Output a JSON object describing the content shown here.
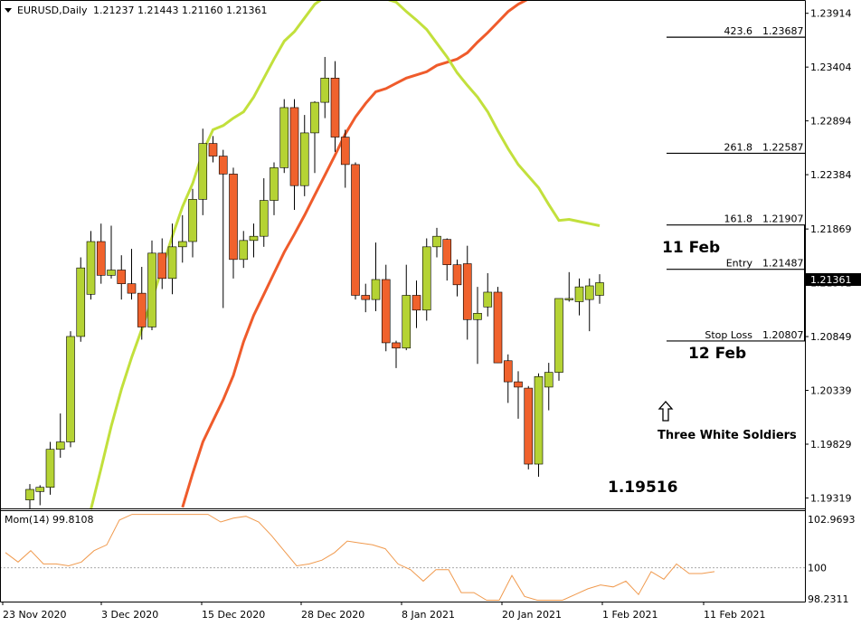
{
  "header": {
    "symbol": "EURUSD,Daily",
    "ohlc": "1.21237 1.21443 1.21160 1.21361"
  },
  "colors": {
    "bull": "#b5d334",
    "bear": "#f0622d",
    "ma_fast": "#c2e03c",
    "ma_slow": "#ef5b2b",
    "momentum": "#f09a4e",
    "price_tag_bg": "#000000"
  },
  "current_price": "1.21361",
  "chart_data": [
    {
      "type": "candlestick",
      "title": "EURUSD,Daily",
      "x_tick_labels": [
        "23 Nov 2020",
        "3 Dec 2020",
        "15 Dec 2020",
        "28 Dec 2020",
        "8 Jan 2021",
        "20 Jan 2021",
        "1 Feb 2021",
        "11 Feb 2021"
      ],
      "y_tick_labels": [
        "1.23914",
        "1.23404",
        "1.22894",
        "1.22384",
        "1.21869",
        "1.21361",
        "1.20849",
        "1.20339",
        "1.19829",
        "1.19319"
      ],
      "ylim": [
        1.1922,
        1.2404
      ],
      "candles": [
        [
          1.193,
          1.1945,
          1.1922,
          1.194
        ],
        [
          1.1938,
          1.1944,
          1.1925,
          1.1942
        ],
        [
          1.1942,
          1.1985,
          1.1935,
          1.1978
        ],
        [
          1.1978,
          1.2012,
          1.197,
          1.1985
        ],
        [
          1.1985,
          1.209,
          1.198,
          1.2085
        ],
        [
          1.2085,
          1.216,
          1.208,
          1.215
        ],
        [
          1.2125,
          1.2185,
          1.212,
          1.2175
        ],
        [
          1.2175,
          1.2192,
          1.2135,
          1.2143
        ],
        [
          1.2143,
          1.219,
          1.214,
          1.2148
        ],
        [
          1.2148,
          1.2162,
          1.212,
          1.2135
        ],
        [
          1.2135,
          1.2168,
          1.212,
          1.2126
        ],
        [
          1.2126,
          1.2151,
          1.2082,
          1.2094
        ],
        [
          1.2094,
          1.2176,
          1.2091,
          1.2164
        ],
        [
          1.2164,
          1.2178,
          1.213,
          1.214
        ],
        [
          1.214,
          1.2192,
          1.2125,
          1.217
        ],
        [
          1.217,
          1.22,
          1.2155,
          1.2175
        ],
        [
          1.2175,
          1.2225,
          1.216,
          1.2215
        ],
        [
          1.2215,
          1.2282,
          1.22,
          1.2268
        ],
        [
          1.2268,
          1.2275,
          1.225,
          1.2256
        ],
        [
          1.2256,
          1.2262,
          1.2112,
          1.2239
        ],
        [
          1.2239,
          1.2245,
          1.214,
          1.2158
        ],
        [
          1.2158,
          1.2185,
          1.215,
          1.2176
        ],
        [
          1.2176,
          1.2192,
          1.216,
          1.218
        ],
        [
          1.218,
          1.2235,
          1.217,
          1.2214
        ],
        [
          1.2214,
          1.225,
          1.22,
          1.2245
        ],
        [
          1.2245,
          1.231,
          1.224,
          1.2302
        ],
        [
          1.2302,
          1.231,
          1.2205,
          1.2228
        ],
        [
          1.2228,
          1.2295,
          1.2218,
          1.2278
        ],
        [
          1.2278,
          1.2308,
          1.224,
          1.2307
        ],
        [
          1.2307,
          1.235,
          1.2292,
          1.233
        ],
        [
          1.233,
          1.2346,
          1.226,
          1.2274
        ],
        [
          1.2274,
          1.2281,
          1.2226,
          1.2248
        ],
        [
          1.2248,
          1.225,
          1.212,
          1.2124
        ],
        [
          1.2124,
          1.2135,
          1.2108,
          1.212
        ],
        [
          1.212,
          1.2174,
          1.2109,
          1.2139
        ],
        [
          1.2139,
          1.2153,
          1.2071,
          1.2079
        ],
        [
          1.2079,
          1.2081,
          1.2055,
          1.2074
        ],
        [
          1.2074,
          1.2153,
          1.2072,
          1.2124
        ],
        [
          1.2124,
          1.2138,
          1.2093,
          1.211
        ],
        [
          1.211,
          1.2178,
          1.21,
          1.217
        ],
        [
          1.217,
          1.2188,
          1.216,
          1.218
        ],
        [
          1.2177,
          1.2178,
          1.2138,
          1.2153
        ],
        [
          1.2153,
          1.2158,
          1.2123,
          1.2134
        ],
        [
          1.2154,
          1.2171,
          1.2082,
          1.2101
        ],
        [
          1.2101,
          1.2132,
          1.2059,
          1.2107
        ],
        [
          1.2113,
          1.2145,
          1.2104,
          1.2127
        ],
        [
          1.2127,
          1.2132,
          1.206,
          1.206
        ],
        [
          1.2062,
          1.2068,
          1.2022,
          1.2042
        ],
        [
          1.2042,
          1.2052,
          1.2007,
          1.2037
        ],
        [
          1.2036,
          1.2038,
          1.1959,
          1.1964
        ],
        [
          1.1964,
          1.205,
          1.1952,
          1.2047
        ],
        [
          1.2037,
          1.206,
          1.2015,
          1.2051
        ],
        [
          1.2051,
          1.212,
          1.2043,
          1.2121
        ],
        [
          1.212,
          1.2146,
          1.2118,
          1.2121
        ],
        [
          1.2118,
          1.214,
          1.2105,
          1.2132
        ],
        [
          1.212,
          1.214,
          1.209,
          1.2133
        ],
        [
          1.2124,
          1.2144,
          1.2116,
          1.2136
        ]
      ],
      "series": [
        {
          "type": "line",
          "values": [
            null,
            null,
            null,
            null,
            null,
            null,
            1.1921,
            1.196,
            1.2,
            1.2035,
            1.2065,
            1.2092,
            1.212,
            1.215,
            1.218,
            1.2208,
            1.223,
            1.226,
            1.2281,
            1.2285,
            1.2292,
            1.2298,
            1.2312,
            1.233,
            1.2348,
            1.2365,
            1.2374,
            1.2387,
            1.24,
            1.2407,
            1.2424,
            1.2431,
            1.2438,
            1.2422,
            1.2413,
            1.2405,
            1.2402,
            1.2393,
            1.2385,
            1.2376,
            1.2363,
            1.235,
            1.2335,
            1.2323,
            1.2312,
            1.2298,
            1.228,
            1.2263,
            1.2248,
            1.2237,
            1.2226,
            1.221,
            1.2195,
            1.2196,
            1.2194,
            1.2192,
            1.219
          ]
        },
        {
          "type": "line",
          "values": [
            null,
            null,
            null,
            null,
            null,
            null,
            null,
            null,
            null,
            null,
            null,
            null,
            null,
            null,
            null,
            1.1923,
            1.1955,
            1.1985,
            1.2005,
            1.2025,
            1.2048,
            1.208,
            1.2105,
            1.2125,
            1.2145,
            1.2165,
            1.2182,
            1.22,
            1.2219,
            1.2238,
            1.2257,
            1.2277,
            1.2293,
            1.2306,
            1.2317,
            1.232,
            1.2325,
            1.233,
            1.2333,
            1.2336,
            1.2342,
            1.2345,
            1.2348,
            1.2354,
            1.2364,
            1.2373,
            1.2383,
            1.2393,
            1.24,
            1.2405,
            1.241,
            1.2414,
            1.2417,
            1.2419,
            1.242,
            1.2422,
            1.2424
          ]
        }
      ],
      "levels": [
        {
          "label": "423.6",
          "value": "1.23687"
        },
        {
          "label": "261.8",
          "value": "1.22587"
        },
        {
          "label": "161.8",
          "value": "1.21907"
        },
        {
          "label": "Entry",
          "value": "1.21487"
        },
        {
          "label": "Stop Loss",
          "value": "1.20807"
        }
      ],
      "annotations": {
        "feb11": "11 Feb",
        "feb12": "12 Feb",
        "pattern": "Three White Soldiers",
        "low": "1.19516"
      }
    },
    {
      "type": "line",
      "title": "Mom(14) 99.8108",
      "y_tick_labels": [
        "102.9693",
        "100",
        "98.2311"
      ],
      "ylim": [
        98.23,
        102.97
      ],
      "reference": 100,
      "values": [
        100.8,
        100.3,
        100.9,
        100.2,
        100.2,
        100.1,
        100.3,
        100.9,
        101.2,
        102.5,
        102.8,
        102.8,
        102.8,
        102.8,
        102.8,
        102.8,
        102.8,
        102.4,
        102.6,
        102.7,
        102.4,
        101.7,
        100.9,
        100.1,
        100.2,
        100.4,
        100.8,
        101.4,
        101.3,
        101.2,
        101.0,
        100.2,
        99.9,
        99.3,
        99.9,
        99.9,
        98.7,
        98.7,
        98.3,
        98.3,
        99.6,
        98.5,
        98.3,
        98.3,
        98.3,
        98.6,
        98.9,
        99.1,
        99.0,
        99.3,
        98.6,
        99.8,
        99.4,
        100.2,
        99.7,
        99.7,
        99.8
      ]
    }
  ]
}
